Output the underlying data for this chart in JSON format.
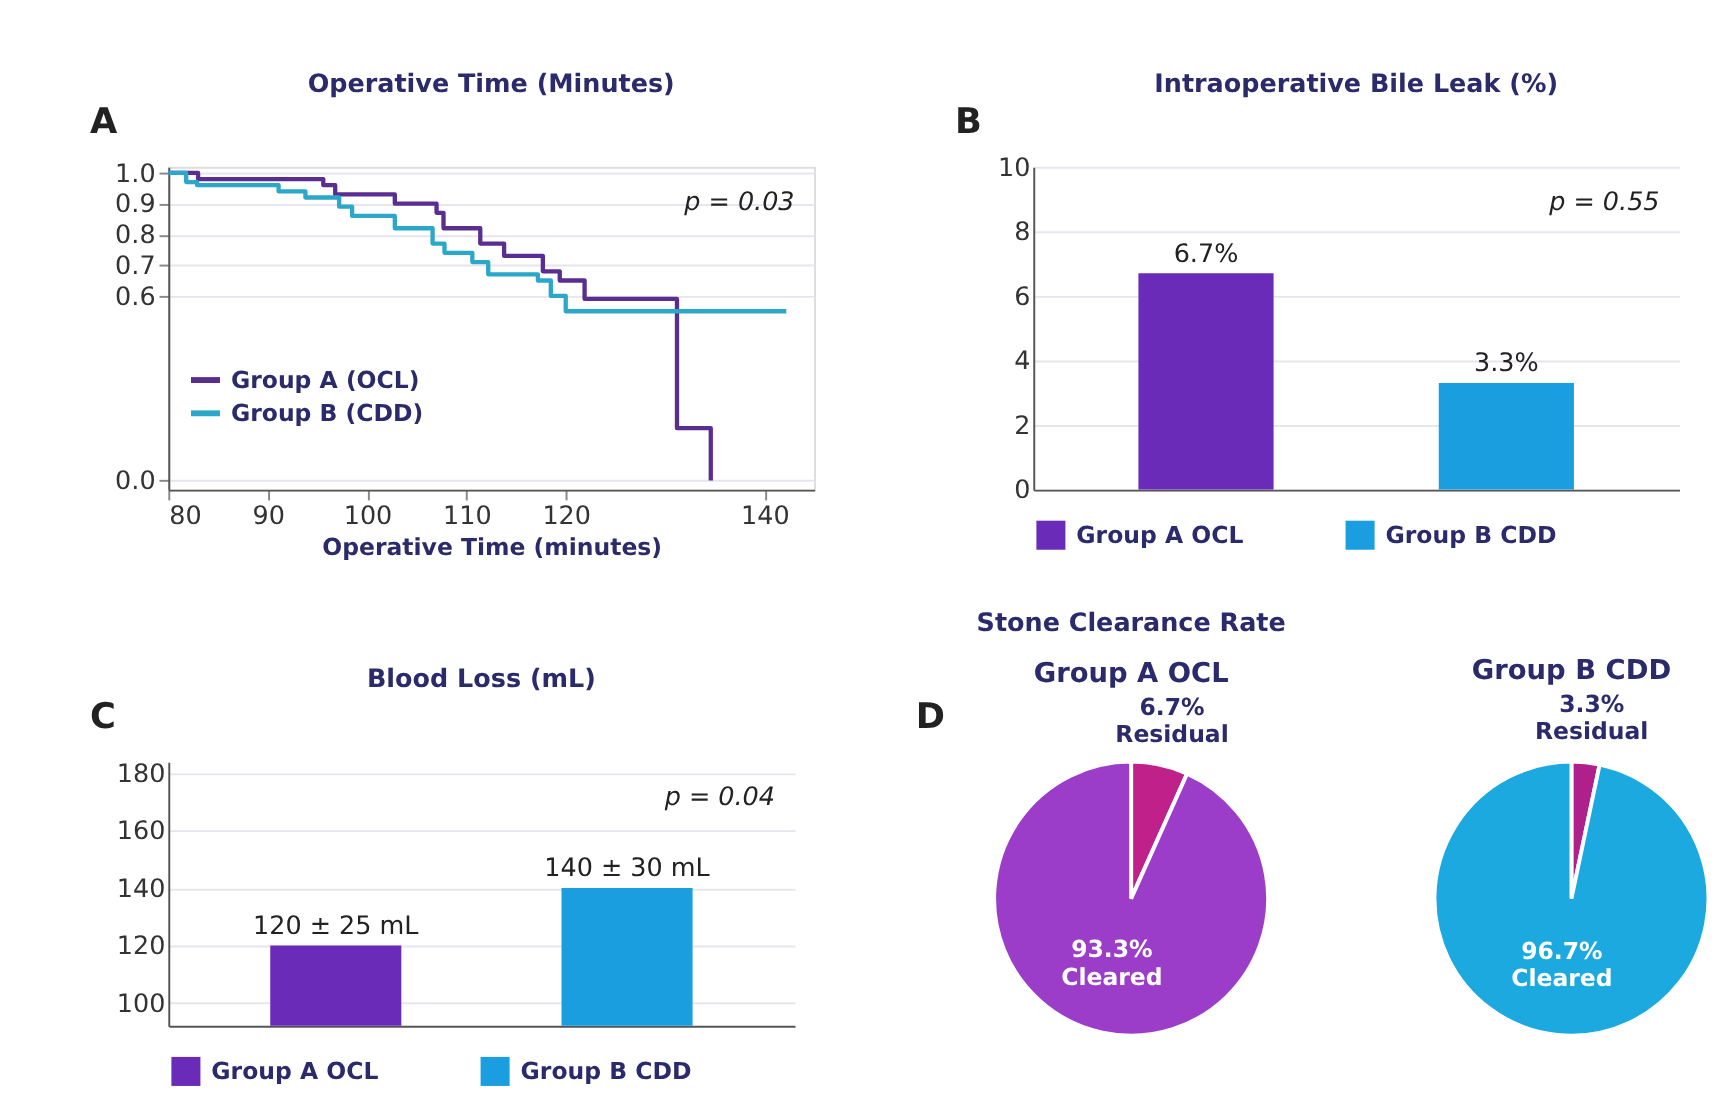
{
  "chart_data": [
    {
      "type": "step",
      "title": "Operative Time (Minutes)",
      "xlabel": "Operative Time (minutes)",
      "annotations": [
        "A",
        "p = 0.03"
      ],
      "xlim": [
        80,
        145
      ],
      "xticks": [
        80,
        90,
        100,
        110,
        120,
        140
      ],
      "ylim": [
        -0.03,
        1.02
      ],
      "yticks": [
        {
          "value": 1.0,
          "label": "1.0"
        },
        0.9,
        0.8,
        0.7,
        0.6,
        {
          "value": 0.0,
          "label": "0.0"
        }
      ],
      "grid": "y",
      "legend": "bottom left",
      "series": [
        {
          "name": "Group A (OCL)",
          "color": "#5a2d91",
          "x": [
            80,
            83,
            95.6,
            96.8,
            102.8,
            107.0,
            107.7,
            111.4,
            113.8,
            117.7,
            119.4,
            121.9,
            131.2,
            134.6
          ],
          "values": [
            1.0,
            0.98,
            0.96,
            0.93,
            0.9,
            0.87,
            0.82,
            0.77,
            0.73,
            0.68,
            0.65,
            0.59,
            0.17,
            0.0
          ]
        },
        {
          "name": "Group B (CDD)",
          "color": "#2aa7c9",
          "x": [
            80,
            81.8,
            82.9,
            91.1,
            93.8,
            97.2,
            98.5,
            102.8,
            106.6,
            107.8,
            110.6,
            112.2,
            117.2,
            118.5,
            120.0,
            142.2
          ],
          "values": [
            1.0,
            0.97,
            0.96,
            0.94,
            0.92,
            0.89,
            0.86,
            0.82,
            0.77,
            0.74,
            0.71,
            0.67,
            0.65,
            0.6,
            0.55,
            0.55
          ]
        }
      ]
    },
    {
      "type": "bar",
      "title": "Intraoperative Bile Leak (%)",
      "annotations": [
        "B",
        "p = 0.55"
      ],
      "categories": [
        null
      ],
      "ylim": [
        0,
        10
      ],
      "yticks": [
        0,
        2,
        4,
        6,
        8,
        10
      ],
      "grid": "y",
      "legend": "bottom",
      "series": [
        {
          "name": "Group A OCL",
          "color": "#6a2bb8",
          "values": [
            6.7
          ],
          "value_labels": [
            "6.7%"
          ]
        },
        {
          "name": "Group B CDD",
          "color": "#1a9ee0",
          "values": [
            3.3
          ],
          "value_labels": [
            "3.3%"
          ]
        }
      ]
    },
    {
      "type": "bar",
      "title": "Blood Loss (mL)",
      "annotations": [
        "C",
        "p = 0.04"
      ],
      "categories": [
        null
      ],
      "ylim": [
        92,
        184
      ],
      "yticks": [
        100,
        120,
        140,
        160,
        180
      ],
      "grid": "y",
      "legend": "bottom",
      "series": [
        {
          "name": "Group A OCL",
          "color": "#6a2bb8",
          "values": [
            120
          ],
          "value_labels": [
            "120 ± 25 mL"
          ]
        },
        {
          "name": "Group B CDD",
          "color": "#1a9ee0",
          "values": [
            140
          ],
          "value_labels": [
            "140 ± 30 mL"
          ]
        }
      ]
    },
    {
      "type": "pie",
      "title": "Stone Clearance Rate",
      "subtitle": "Group A OCL",
      "annotations": [
        "D"
      ],
      "categories": [
        "Residual",
        "Cleared"
      ],
      "values": [
        6.7,
        93.3
      ],
      "value_labels": [
        "6.7%",
        "93.3%"
      ],
      "colors": [
        "#c0208a",
        "#9b3dc8"
      ]
    },
    {
      "type": "pie",
      "subtitle": "Group B CDD",
      "categories": [
        "Residual",
        "Cleared"
      ],
      "values": [
        3.3,
        96.7
      ],
      "value_labels": [
        "3.3%",
        "96.7%"
      ],
      "colors": [
        "#b0208a",
        "#1ba9e0"
      ]
    }
  ]
}
